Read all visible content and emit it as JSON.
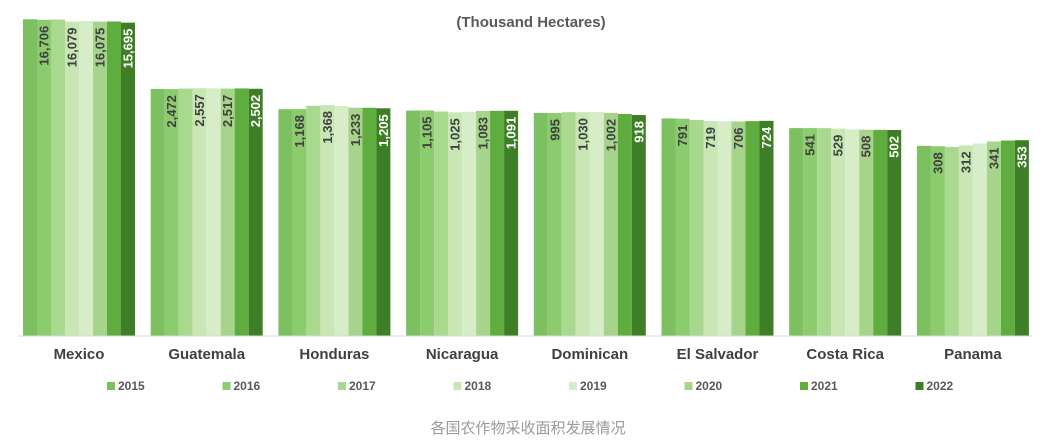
{
  "chart_data": {
    "type": "bar",
    "title": "(Thousand Hectares)",
    "categories": [
      "Mexico",
      "Guatemala",
      "Honduras",
      "Nicaragua",
      "Dominican",
      "El Salvador",
      "Costa Rica",
      "Panama"
    ],
    "series": [
      {
        "name": "2015",
        "color": "#7dc061",
        "values": [
          16900,
          2490,
          1160,
          1100,
          1000,
          800,
          540,
          310
        ]
      },
      {
        "name": "2016",
        "color": "#8ccb6e",
        "values": [
          16706,
          2472,
          1168,
          1105,
          995,
          791,
          541,
          308
        ]
      },
      {
        "name": "2017",
        "color": "#a9d98f",
        "values": [
          16800,
          2520,
          1330,
          1060,
          1030,
          750,
          540,
          305
        ]
      },
      {
        "name": "2018",
        "color": "#c8e7b4",
        "values": [
          16079,
          2557,
          1368,
          1025,
          1030,
          719,
          529,
          312
        ]
      },
      {
        "name": "2019",
        "color": "#d6edc8",
        "values": [
          16300,
          2540,
          1320,
          1050,
          1040,
          712,
          515,
          325
        ]
      },
      {
        "name": "2020",
        "color": "#a5d48a",
        "values": [
          16075,
          2517,
          1233,
          1083,
          1002,
          706,
          508,
          341
        ]
      },
      {
        "name": "2021",
        "color": "#5fac3f",
        "values": [
          16100,
          2530,
          1230,
          1090,
          960,
          715,
          505,
          350
        ]
      },
      {
        "name": "2022",
        "color": "#3e7e27",
        "values": [
          15695,
          2502,
          1205,
          1091,
          918,
          724,
          502,
          353
        ]
      }
    ],
    "data_labels": [
      {
        "series": 1,
        "category": 0,
        "text": "16,706"
      },
      {
        "series": 3,
        "category": 0,
        "text": "16,079"
      },
      {
        "series": 5,
        "category": 0,
        "text": "16,075"
      },
      {
        "series": 7,
        "category": 0,
        "text": "15,695"
      },
      {
        "series": 1,
        "category": 1,
        "text": "2,472"
      },
      {
        "series": 3,
        "category": 1,
        "text": "2,557"
      },
      {
        "series": 5,
        "category": 1,
        "text": "2,517"
      },
      {
        "series": 7,
        "category": 1,
        "text": "2,502"
      },
      {
        "series": 1,
        "category": 2,
        "text": "1,168"
      },
      {
        "series": 3,
        "category": 2,
        "text": "1,368"
      },
      {
        "series": 5,
        "category": 2,
        "text": "1,233"
      },
      {
        "series": 7,
        "category": 2,
        "text": "1,205"
      },
      {
        "series": 1,
        "category": 3,
        "text": "1,105"
      },
      {
        "series": 3,
        "category": 3,
        "text": "1,025"
      },
      {
        "series": 5,
        "category": 3,
        "text": "1,083"
      },
      {
        "series": 7,
        "category": 3,
        "text": "1,091"
      },
      {
        "series": 1,
        "category": 4,
        "text": "995"
      },
      {
        "series": 3,
        "category": 4,
        "text": "1,030"
      },
      {
        "series": 5,
        "category": 4,
        "text": "1,002"
      },
      {
        "series": 7,
        "category": 4,
        "text": "918"
      },
      {
        "series": 1,
        "category": 5,
        "text": "791"
      },
      {
        "series": 3,
        "category": 5,
        "text": "719"
      },
      {
        "series": 5,
        "category": 5,
        "text": "706"
      },
      {
        "series": 7,
        "category": 5,
        "text": "724"
      },
      {
        "series": 1,
        "category": 6,
        "text": "541"
      },
      {
        "series": 3,
        "category": 6,
        "text": "529"
      },
      {
        "series": 5,
        "category": 6,
        "text": "508"
      },
      {
        "series": 7,
        "category": 6,
        "text": "502"
      },
      {
        "series": 1,
        "category": 7,
        "text": "308"
      },
      {
        "series": 3,
        "category": 7,
        "text": "312"
      },
      {
        "series": 5,
        "category": 7,
        "text": "341"
      },
      {
        "series": 7,
        "category": 7,
        "text": "353"
      }
    ],
    "axis": {
      "scale": "non-linear (axis not shown)",
      "grid": false
    },
    "legend": {
      "placement": "bottom"
    }
  },
  "caption": "各国农作物采收面积发展情况"
}
